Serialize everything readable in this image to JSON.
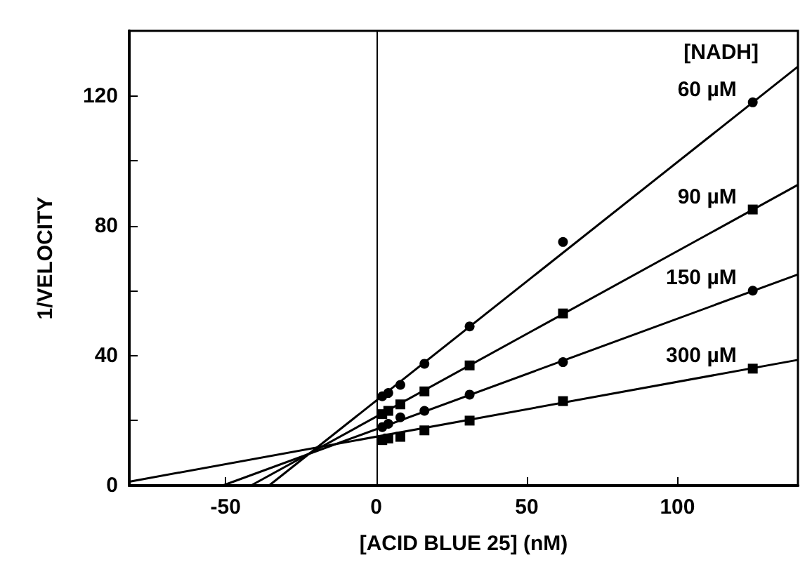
{
  "chart_data": {
    "type": "scatter",
    "xlabel": "[ACID BLUE 25] (nM)",
    "ylabel": "1/VELOCITY",
    "legend_title": "[NADH]",
    "xlim": [
      -82,
      140
    ],
    "ylim": [
      0,
      140
    ],
    "xticks": [
      -50,
      0,
      50,
      100
    ],
    "yticks": [
      0,
      {
        "value": 20,
        "label": null
      },
      40,
      {
        "value": 60,
        "label": null
      },
      80,
      {
        "value": 100,
        "label": null
      },
      120
    ],
    "grid": false,
    "legend": false,
    "ref_lines": [
      {
        "axis": "x",
        "value": 0,
        "color": "#000000"
      }
    ],
    "series": [
      {
        "name": "60 µM",
        "color": "#000000",
        "marker": "circle",
        "x": [
          2,
          4,
          8,
          16,
          31,
          62,
          125
        ],
        "values": [
          27.5,
          28.5,
          31,
          37.5,
          49,
          75,
          118
        ]
      },
      {
        "name": "90 µM",
        "color": "#000000",
        "marker": "square",
        "x": [
          2,
          4,
          8,
          16,
          31,
          62,
          125
        ],
        "values": [
          22,
          23,
          25,
          29,
          37,
          53,
          85
        ]
      },
      {
        "name": "150 µM",
        "color": "#000000",
        "marker": "circle",
        "x": [
          2,
          4,
          8,
          16,
          31,
          62,
          125
        ],
        "values": [
          18,
          19,
          21,
          23,
          28,
          38,
          60
        ]
      },
      {
        "name": "300 µM",
        "color": "#000000",
        "marker": "square",
        "x": [
          2,
          4,
          8,
          16,
          31,
          62,
          125
        ],
        "values": [
          14,
          14.5,
          15,
          17,
          20,
          26,
          36
        ]
      },
      {
        "type": "line",
        "color": "#000000",
        "marker": "none",
        "x": [
          -35.6,
          140
        ],
        "values": [
          0,
          129
        ]
      },
      {
        "type": "line",
        "color": "#000000",
        "marker": "none",
        "x": [
          -41.6,
          140
        ],
        "values": [
          0,
          92.6
        ]
      },
      {
        "type": "line",
        "color": "#000000",
        "marker": "none",
        "x": [
          -51,
          140
        ],
        "values": [
          0,
          65
        ]
      },
      {
        "type": "line",
        "color": "#000000",
        "marker": "none",
        "x": [
          -82,
          140
        ],
        "values": [
          1.2,
          38.7
        ]
      }
    ]
  }
}
